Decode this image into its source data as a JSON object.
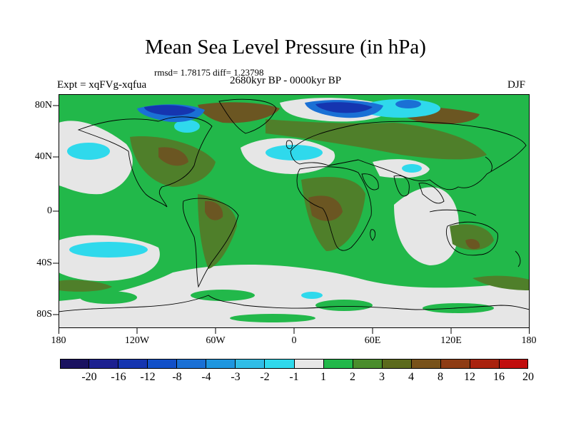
{
  "title": "Mean Sea Level Pressure (in hPa)",
  "stats": "rmsd= 1.78175 diff= 1.23798",
  "expt": "Expt = xqFVg-xqfua",
  "period": "2680kyr BP - 0000kyr BP",
  "season": "DJF",
  "lat_labels": [
    "80N",
    "40N",
    "0",
    "40S",
    "80S"
  ],
  "lon_labels": [
    "180",
    "120W",
    "60W",
    "0",
    "60E",
    "120E",
    "180"
  ],
  "colorbar": {
    "colors": [
      "#1a1260",
      "#1c2090",
      "#1535b0",
      "#1250c8",
      "#1a70d5",
      "#1e96df",
      "#30bde6",
      "#2fd9ec",
      "#e6e6e6",
      "#22b84a",
      "#4a8d2c",
      "#5c6a1c",
      "#78521a",
      "#8e3c14",
      "#a9220e",
      "#c10e0e"
    ],
    "labels": [
      "-20",
      "-16",
      "-12",
      "-8",
      "-4",
      "-3",
      "-2",
      "-1",
      "1",
      "2",
      "3",
      "4",
      "8",
      "12",
      "16",
      "20"
    ]
  },
  "colors": {
    "green": "#22b84a",
    "gray": "#e6e6e6",
    "olive": "#4f7f2a",
    "brown": "#6b5622",
    "cyan": "#2fd9ec",
    "blue": "#1a70d5",
    "navy": "#1535b0"
  }
}
